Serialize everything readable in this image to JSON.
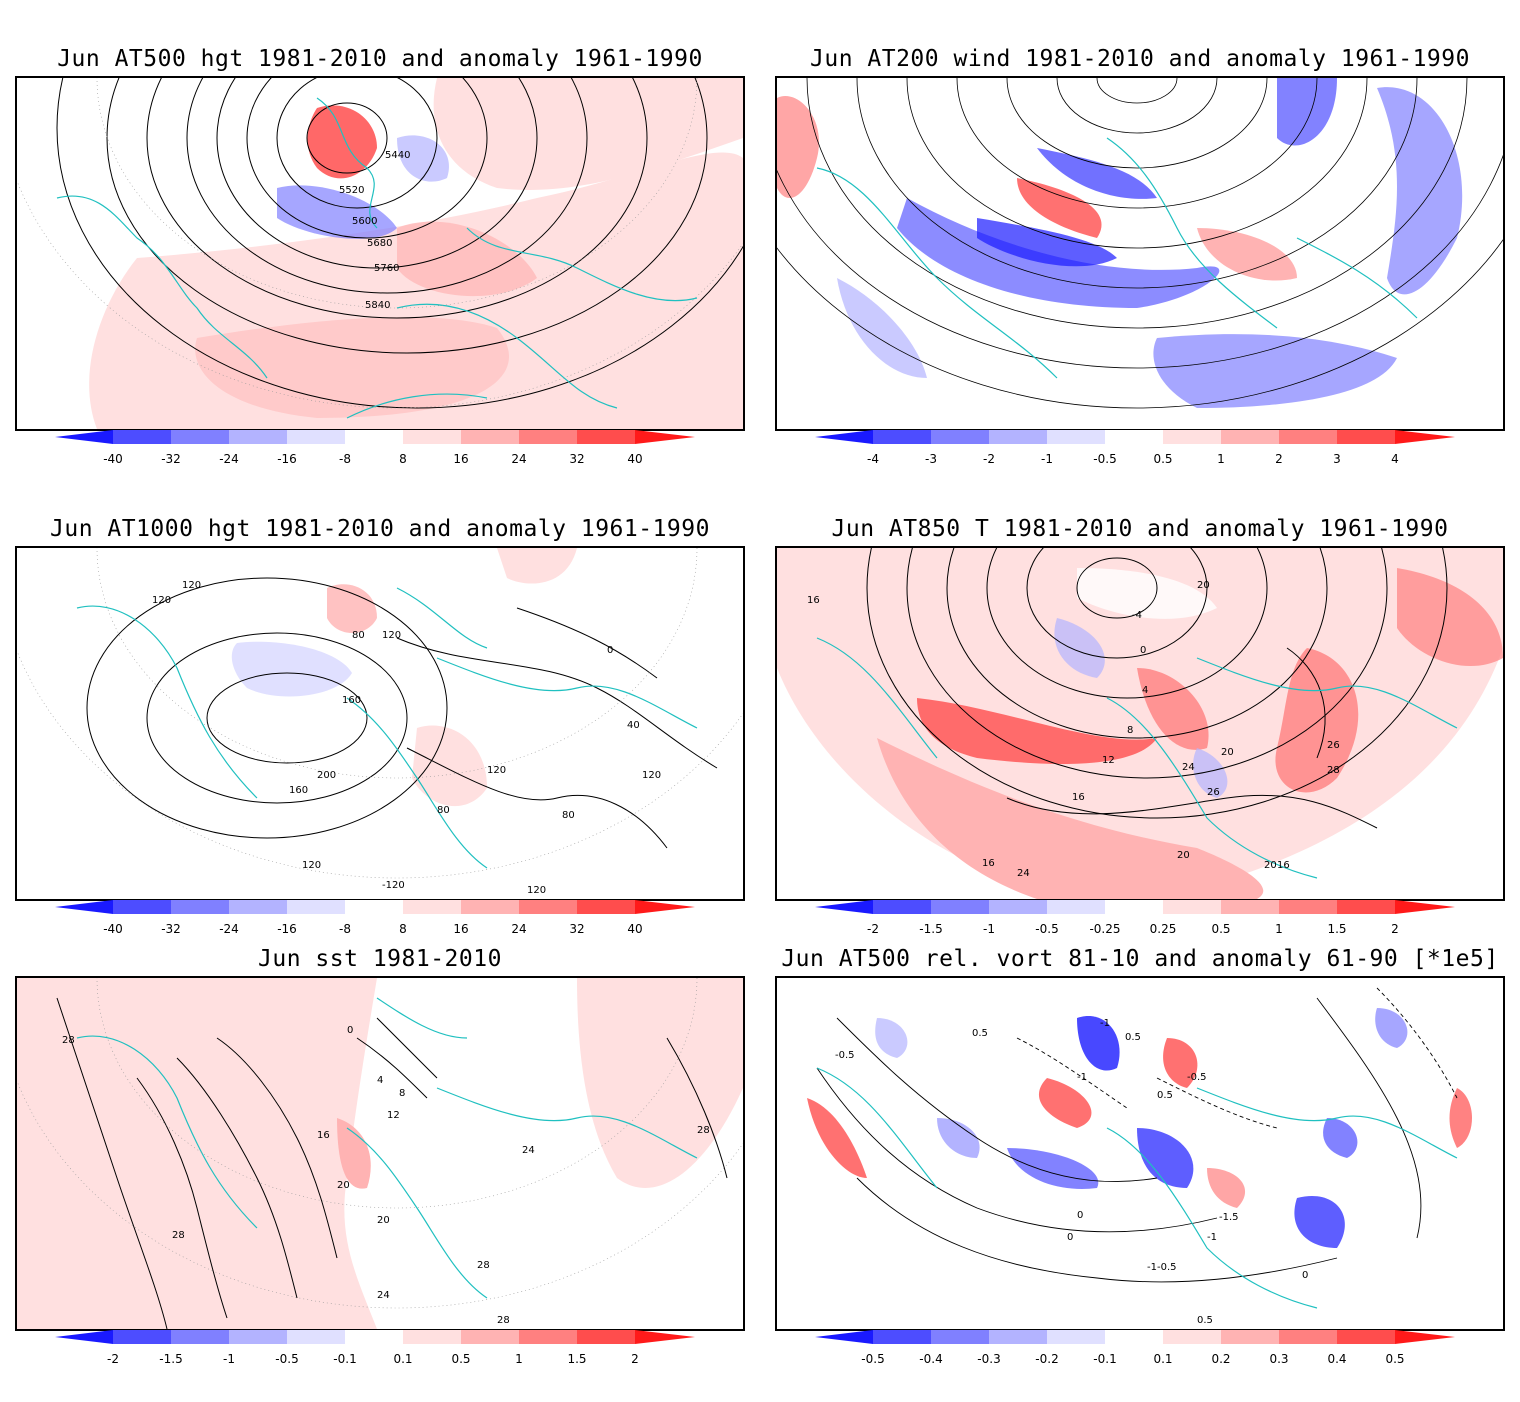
{
  "panels": [
    {
      "id": "p1",
      "title": "Jun AT500 hgt 1981-2010 and anomaly 1961-1990",
      "colorbar": {
        "labels": [
          "-40",
          "-32",
          "-24",
          "-16",
          "-8",
          "8",
          "16",
          "24",
          "32",
          "40"
        ]
      },
      "contour_labels": [
        "5440",
        "5520",
        "5600",
        "5680",
        "5760",
        "5840"
      ]
    },
    {
      "id": "p2",
      "title": "Jun AT200 wind 1981-2010 and anomaly 1961-1990",
      "colorbar": {
        "labels": [
          "-4",
          "-3",
          "-2",
          "-1",
          "-0.5",
          "0.5",
          "1",
          "2",
          "3",
          "4"
        ]
      },
      "contour_labels": []
    },
    {
      "id": "p3",
      "title": "Jun AT1000 hgt 1981-2010 and anomaly 1961-1990",
      "colorbar": {
        "labels": [
          "-40",
          "-32",
          "-24",
          "-16",
          "-8",
          "8",
          "16",
          "24",
          "32",
          "40"
        ]
      },
      "contour_labels": [
        "120",
        "80",
        "120",
        "160",
        "120",
        "200",
        "160",
        "120",
        "80",
        "120",
        "-120",
        "120",
        "80",
        "40",
        "120",
        "0"
      ]
    },
    {
      "id": "p4",
      "title": "Jun AT850 T 1981-2010 and anomaly 1961-1990",
      "colorbar": {
        "labels": [
          "-2",
          "-1.5",
          "-1",
          "-0.5",
          "-0.25",
          "0.25",
          "0.5",
          "1",
          "1.5",
          "2"
        ]
      },
      "contour_labels": [
        "20",
        "16",
        "-4",
        "0",
        "4",
        "8",
        "12",
        "20",
        "24",
        "26",
        "28",
        "16",
        "16",
        "24",
        "20",
        "16",
        "26",
        "20"
      ]
    },
    {
      "id": "p5",
      "title": "Jun sst 1981-2010",
      "colorbar": {
        "labels": [
          "-2",
          "-1.5",
          "-1",
          "-0.5",
          "-0.1",
          "0.1",
          "0.5",
          "1",
          "1.5",
          "2"
        ]
      },
      "contour_labels": [
        "28",
        "0",
        "4",
        "8",
        "12",
        "16",
        "20",
        "24",
        "28",
        "28",
        "28",
        "24",
        "20",
        "28"
      ]
    },
    {
      "id": "p6",
      "title": "Jun AT500 rel. vort 81-10 and anomaly 61-90 [*1e5]",
      "colorbar": {
        "labels": [
          "-0.5",
          "-0.4",
          "-0.3",
          "-0.2",
          "-0.1",
          "0.1",
          "0.2",
          "0.3",
          "0.4",
          "0.5"
        ]
      },
      "contour_labels": [
        "-0.5",
        "0.5",
        "-1",
        "0.5",
        "-1",
        "-0.5",
        "0",
        "-1.5",
        "-1",
        "0.5",
        "-0.5",
        "0",
        "-1",
        "0.5",
        "0"
      ]
    }
  ],
  "colors": {
    "neg": [
      "#1a1aff",
      "#4d4dff",
      "#8080ff",
      "#b3b3ff",
      "#e0e0ff"
    ],
    "pos": [
      "#ffe0e0",
      "#ffb3b3",
      "#ff8080",
      "#ff4d4d",
      "#ff1a1a"
    ],
    "coast": "#20c0c0"
  }
}
